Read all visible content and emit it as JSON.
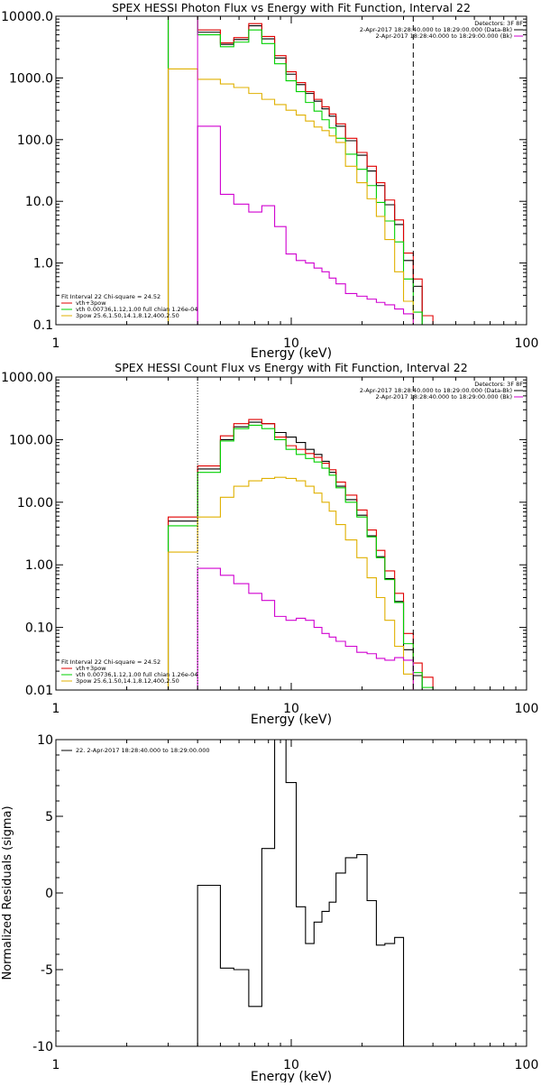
{
  "chart_data": [
    {
      "type": "line",
      "title": "SPEX HESSI Photon Flux vs Energy with Fit Function, Interval 22",
      "xlabel": "Energy (keV)",
      "ylabel": "",
      "xscale": "log",
      "yscale": "log",
      "xlim": [
        1,
        100
      ],
      "ylim": [
        0.1,
        10000
      ],
      "xticks": [
        {
          "v": 1,
          "label": "1"
        },
        {
          "v": 10,
          "label": "10"
        },
        {
          "v": 100,
          "label": "100"
        }
      ],
      "yticks": [
        {
          "v": 0.1,
          "label": "0.1"
        },
        {
          "v": 1,
          "label": "1.0"
        },
        {
          "v": 10,
          "label": "10.0"
        },
        {
          "v": 100,
          "label": "100.0"
        },
        {
          "v": 1000,
          "label": "1000.0"
        },
        {
          "v": 10000,
          "label": "10000.0"
        }
      ],
      "vlines": [
        {
          "x": 4.0,
          "style": "solid",
          "color": "#d000d0"
        },
        {
          "x": 33.0,
          "style": "dashed",
          "color": "#000000"
        }
      ],
      "legend_right": {
        "header": "Detectors: 3F 8F",
        "lines": [
          {
            "text": "2-Apr-2017 18:28:40.000 to 18:29:00.000 (Data-Bk)",
            "color": "#000000"
          },
          {
            "text": "2-Apr-2017 18:28:40.000 to 18:29:00.000 (Bk)",
            "color": "#d000d0"
          }
        ]
      },
      "legend_left": {
        "header": "Fit Interval 22   Chi-square = 24.52",
        "lines": [
          {
            "text": "vth+3pow",
            "color": "#e00000"
          },
          {
            "text": "vth 0.00736,1.12,1.00  full chian 1.26e-04",
            "color": "#00d000"
          },
          {
            "text": "3pow 25.6,1.50,14.1,8.12,400,2.50",
            "color": "#e0b000"
          }
        ]
      },
      "series": [
        {
          "name": "Data-Bk",
          "color": "#000000",
          "edges": [
            3.0,
            4.0,
            5.0,
            5.7,
            6.6,
            7.5,
            8.5,
            9.5,
            10.5,
            11.5,
            12.5,
            13.5,
            14.5,
            15.5,
            17.0,
            19.0,
            21.0,
            23.0,
            25.0,
            27.5,
            30.0,
            33.0,
            36.0
          ],
          "values": [
            10000,
            5500,
            3500,
            4200,
            7000,
            4300,
            2100,
            1150,
            780,
            560,
            420,
            315,
            240,
            165,
            96,
            56,
            31,
            18,
            8.8,
            4.2,
            1.1,
            0.42
          ]
        },
        {
          "name": "vth+3pow",
          "color": "#e00000",
          "edges": [
            3.0,
            4.0,
            5.0,
            5.7,
            6.6,
            7.5,
            8.5,
            9.5,
            10.5,
            11.5,
            12.5,
            13.5,
            14.5,
            15.5,
            17.0,
            19.0,
            21.0,
            23.0,
            25.0,
            27.5,
            30.0,
            33.0,
            36.0,
            40.0
          ],
          "values": [
            10000,
            6000,
            3700,
            4500,
            7600,
            4700,
            2300,
            1260,
            840,
            600,
            450,
            340,
            260,
            180,
            105,
            62,
            37,
            20,
            10.5,
            5.0,
            1.45,
            0.55,
            0.14
          ]
        },
        {
          "name": "vth",
          "color": "#00d000",
          "edges": [
            3.0,
            4.0,
            5.0,
            5.7,
            6.6,
            7.5,
            8.5,
            9.5,
            10.5,
            11.5,
            12.5,
            13.5,
            14.5,
            15.5,
            17.0,
            19.0,
            21.0,
            23.0,
            25.0,
            27.5,
            30.0,
            33.0,
            36.0
          ],
          "values": [
            10000,
            5000,
            3200,
            3800,
            6000,
            3600,
            1700,
            900,
            600,
            400,
            290,
            210,
            155,
            105,
            58,
            33,
            18,
            9.6,
            4.8,
            2.2,
            0.55,
            0.16
          ]
        },
        {
          "name": "3pow",
          "color": "#e0b000",
          "edges": [
            3.0,
            4.0,
            5.0,
            5.7,
            6.6,
            7.5,
            8.5,
            9.5,
            10.5,
            11.5,
            12.5,
            13.5,
            14.5,
            15.5,
            17.0,
            19.0,
            21.0,
            23.0,
            25.0,
            27.5,
            30.0,
            33.0
          ],
          "values": [
            1400,
            950,
            800,
            700,
            560,
            450,
            370,
            300,
            250,
            200,
            160,
            140,
            115,
            90,
            37,
            20,
            11,
            5.7,
            2.4,
            0.72,
            0.24
          ]
        },
        {
          "name": "Bk",
          "color": "#d000d0",
          "edges": [
            4.0,
            5.0,
            5.7,
            6.6,
            7.5,
            8.5,
            9.5,
            10.5,
            11.5,
            12.5,
            13.5,
            14.5,
            15.5,
            17.0,
            19.0,
            21.0,
            23.0,
            25.0,
            27.5,
            30.0,
            33.0
          ],
          "values": [
            165,
            13,
            9,
            6.7,
            8.5,
            3.9,
            1.4,
            1.1,
            1.0,
            0.83,
            0.72,
            0.57,
            0.46,
            0.32,
            0.29,
            0.26,
            0.23,
            0.21,
            0.18,
            0.15
          ]
        }
      ]
    },
    {
      "type": "line",
      "title": "SPEX HESSI Count Flux vs Energy with Fit Function, Interval 22",
      "xlabel": "Energy (keV)",
      "ylabel": "",
      "xscale": "log",
      "yscale": "log",
      "xlim": [
        1,
        100
      ],
      "ylim": [
        0.01,
        1000
      ],
      "xticks": [
        {
          "v": 1,
          "label": "1"
        },
        {
          "v": 10,
          "label": "10"
        },
        {
          "v": 100,
          "label": "100"
        }
      ],
      "yticks": [
        {
          "v": 0.01,
          "label": "0.01"
        },
        {
          "v": 0.1,
          "label": "0.10"
        },
        {
          "v": 1,
          "label": "1.00"
        },
        {
          "v": 10,
          "label": "10.00"
        },
        {
          "v": 100,
          "label": "100.00"
        },
        {
          "v": 1000,
          "label": "1000.00"
        }
      ],
      "vlines": [
        {
          "x": 4.0,
          "style": "dotted",
          "color": "#000000"
        },
        {
          "x": 33.0,
          "style": "dashed",
          "color": "#000000"
        }
      ],
      "legend_right": {
        "header": "Detectors: 3F 8F",
        "lines": [
          {
            "text": "2-Apr-2017 18:28:40.000 to 18:29:00.000 (Data-Bk)",
            "color": "#000000"
          },
          {
            "text": "2-Apr-2017 18:28:40.000 to 18:29:00.000 (Bk)",
            "color": "#d000d0"
          }
        ]
      },
      "legend_left": {
        "header": "Fit Interval 22   Chi-square = 24.52",
        "lines": [
          {
            "text": "vth+3pow",
            "color": "#e00000"
          },
          {
            "text": "vth 0.00736,1.12,1.00  full chian 1.26e-04",
            "color": "#00d000"
          },
          {
            "text": "3pow 25.6,1.50,14.1,8.12,400,2.50",
            "color": "#e0b000"
          }
        ]
      },
      "series": [
        {
          "name": "Data-Bk",
          "color": "#000000",
          "edges": [
            3.0,
            4.0,
            5.0,
            5.7,
            6.6,
            7.5,
            8.5,
            9.5,
            10.5,
            11.5,
            12.5,
            13.5,
            14.5,
            15.5,
            17.0,
            19.0,
            21.0,
            23.0,
            25.0,
            27.5,
            30.0,
            33.0,
            36.0
          ],
          "values": [
            5.0,
            34,
            100,
            160,
            190,
            180,
            130,
            110,
            90,
            70,
            58,
            45,
            30,
            18,
            11,
            6.2,
            2.9,
            1.35,
            0.6,
            0.26,
            0.044,
            0.017
          ]
        },
        {
          "name": "vth+3pow",
          "color": "#e00000",
          "edges": [
            3.0,
            4.0,
            5.0,
            5.7,
            6.6,
            7.5,
            8.5,
            9.5,
            10.5,
            11.5,
            12.5,
            13.5,
            14.5,
            15.5,
            17.0,
            19.0,
            21.0,
            23.0,
            25.0,
            27.5,
            30.0,
            33.0,
            36.0,
            40.0
          ],
          "values": [
            5.8,
            38,
            115,
            180,
            210,
            180,
            110,
            80,
            70,
            60,
            52,
            42,
            33,
            21,
            13,
            7.5,
            3.6,
            1.7,
            0.8,
            0.35,
            0.08,
            0.027,
            0.016
          ]
        },
        {
          "name": "vth",
          "color": "#00d000",
          "edges": [
            3.0,
            4.0,
            5.0,
            5.7,
            6.6,
            7.5,
            8.5,
            9.5,
            10.5,
            11.5,
            12.5,
            13.5,
            14.5,
            15.5,
            17.0,
            19.0,
            21.0,
            23.0,
            25.0,
            27.5,
            30.0,
            33.0,
            36.0,
            40.0
          ],
          "values": [
            4.2,
            30,
            95,
            150,
            170,
            150,
            100,
            70,
            58,
            50,
            44,
            35,
            27,
            17,
            10,
            5.8,
            2.8,
            1.3,
            0.58,
            0.25,
            0.055,
            0.019,
            0.011
          ]
        },
        {
          "name": "3pow",
          "color": "#e0b000",
          "edges": [
            3.0,
            4.0,
            5.0,
            5.7,
            6.6,
            7.5,
            8.5,
            9.5,
            10.5,
            11.5,
            12.5,
            13.5,
            14.5,
            15.5,
            17.0,
            19.0,
            21.0,
            23.0,
            25.0,
            27.5,
            30.0,
            33.0,
            36.0
          ],
          "values": [
            1.6,
            5.8,
            12,
            18,
            22,
            24,
            25,
            24,
            22,
            18,
            14,
            10,
            7.2,
            4.4,
            2.5,
            1.3,
            0.62,
            0.3,
            0.13,
            0.05,
            0.018,
            0.01
          ]
        },
        {
          "name": "Bk",
          "color": "#d000d0",
          "edges": [
            4.0,
            5.0,
            5.7,
            6.6,
            7.5,
            8.5,
            9.5,
            10.5,
            11.5,
            12.5,
            13.5,
            14.5,
            15.5,
            17.0,
            19.0,
            21.0,
            23.0,
            25.0,
            27.5,
            30.0,
            33.0
          ],
          "values": [
            0.88,
            0.68,
            0.5,
            0.35,
            0.27,
            0.15,
            0.13,
            0.14,
            0.13,
            0.1,
            0.08,
            0.07,
            0.06,
            0.05,
            0.04,
            0.038,
            0.032,
            0.03,
            0.033,
            0.03
          ]
        }
      ]
    },
    {
      "type": "line",
      "title": "",
      "xlabel": "Energy (keV)",
      "ylabel": "Normalized Residuals (sigma)",
      "xscale": "log",
      "yscale": "linear",
      "xlim": [
        1,
        100
      ],
      "ylim": [
        -10,
        10
      ],
      "xticks": [
        {
          "v": 1,
          "label": "1"
        },
        {
          "v": 10,
          "label": "10"
        },
        {
          "v": 100,
          "label": "100"
        }
      ],
      "yticks": [
        {
          "v": -10,
          "label": "-10"
        },
        {
          "v": -5,
          "label": "-5"
        },
        {
          "v": 0,
          "label": "0"
        },
        {
          "v": 5,
          "label": "5"
        },
        {
          "v": 10,
          "label": "10"
        }
      ],
      "legend_left": {
        "header": "",
        "lines": [
          {
            "text": "22.  2-Apr-2017 18:28:40.000 to 18:29:00.000",
            "color": "#000000"
          }
        ]
      },
      "series": [
        {
          "name": "",
          "color": "#000000",
          "edges": [
            4.0,
            5.0,
            5.7,
            6.6,
            7.5,
            8.5,
            9.5,
            10.5,
            11.5,
            12.5,
            13.5,
            14.5,
            15.5,
            17.0,
            19.0,
            21.0,
            23.0,
            25.0,
            27.5,
            30.0,
            33.0
          ],
          "values": [
            0.5,
            -4.9,
            -5.0,
            -7.4,
            2.9,
            10.0,
            7.2,
            -0.9,
            -3.3,
            -1.9,
            -1.2,
            -0.6,
            1.3,
            2.3,
            2.5,
            -0.5,
            -3.4,
            -3.3,
            -2.9,
            -10.0
          ]
        }
      ]
    }
  ]
}
